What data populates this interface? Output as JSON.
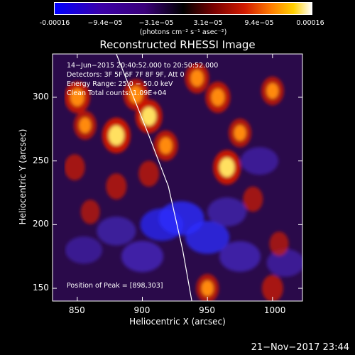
{
  "colorbar": {
    "ticks": [
      "-0.00016",
      "−9.4e−05",
      "−3.1e−05",
      "3.1e−05",
      "9.4e−05",
      "0.00016"
    ],
    "unit": "(photons cm⁻² s⁻¹ asec⁻²)"
  },
  "chart_data": {
    "type": "heatmap",
    "title": "Reconstructed RHESSI Image",
    "xlabel": "Heliocentric X (arcsec)",
    "ylabel": "Heliocentric Y (arcsec)",
    "xlim": [
      831,
      1023
    ],
    "ylim": [
      140,
      334
    ],
    "xticks": [
      850,
      900,
      950,
      1000
    ],
    "yticks": [
      150,
      200,
      250,
      300
    ],
    "clim": [
      -0.00016,
      0.00016
    ],
    "colormap": "blue-purple-black-red-yellow-white",
    "limb_curve": [
      [
        880,
        334
      ],
      [
        905,
        270
      ],
      [
        920,
        230
      ],
      [
        931,
        180
      ],
      [
        938,
        140
      ]
    ],
    "hot_regions": [
      {
        "x": 880,
        "y": 270,
        "intensity": 1.0
      },
      {
        "x": 905,
        "y": 285,
        "intensity": 0.9
      },
      {
        "x": 895,
        "y": 302,
        "intensity": 0.75
      },
      {
        "x": 850,
        "y": 300,
        "intensity": 0.8
      },
      {
        "x": 856,
        "y": 278,
        "intensity": 0.6
      },
      {
        "x": 918,
        "y": 262,
        "intensity": 0.7
      },
      {
        "x": 942,
        "y": 315,
        "intensity": 0.7
      },
      {
        "x": 958,
        "y": 300,
        "intensity": 0.75
      },
      {
        "x": 965,
        "y": 245,
        "intensity": 0.95
      },
      {
        "x": 975,
        "y": 272,
        "intensity": 0.6
      },
      {
        "x": 1000,
        "y": 305,
        "intensity": 0.6
      },
      {
        "x": 880,
        "y": 230,
        "intensity": 0.45
      },
      {
        "x": 848,
        "y": 245,
        "intensity": 0.45
      },
      {
        "x": 905,
        "y": 240,
        "intensity": 0.45
      },
      {
        "x": 950,
        "y": 150,
        "intensity": 0.6
      },
      {
        "x": 985,
        "y": 220,
        "intensity": 0.4
      },
      {
        "x": 1005,
        "y": 185,
        "intensity": 0.35
      },
      {
        "x": 860,
        "y": 210,
        "intensity": 0.35
      },
      {
        "x": 1000,
        "y": 150,
        "intensity": 0.5
      }
    ],
    "cold_regions": [
      {
        "x": 930,
        "y": 205,
        "intensity": 1.0
      },
      {
        "x": 950,
        "y": 190,
        "intensity": 0.9
      },
      {
        "x": 975,
        "y": 175,
        "intensity": 0.7
      },
      {
        "x": 900,
        "y": 175,
        "intensity": 0.75
      },
      {
        "x": 915,
        "y": 200,
        "intensity": 0.85
      },
      {
        "x": 965,
        "y": 210,
        "intensity": 0.55
      },
      {
        "x": 990,
        "y": 250,
        "intensity": 0.45
      },
      {
        "x": 880,
        "y": 195,
        "intensity": 0.55
      },
      {
        "x": 1010,
        "y": 170,
        "intensity": 0.45
      },
      {
        "x": 855,
        "y": 180,
        "intensity": 0.4
      }
    ],
    "info_lines": [
      "14−Jun−2015 20:40:52.000 to 20:50:52.000",
      "Detectors: 3F 5F 6F 7F 8F 9F, Att 0",
      "Energy Range: 25.0 − 50.0 keV",
      "Clean      Total counts: 1.09E+04"
    ],
    "peak_label": "Position of Peak = [898,303]"
  },
  "timestamp": "21−Nov−2017 23:44"
}
